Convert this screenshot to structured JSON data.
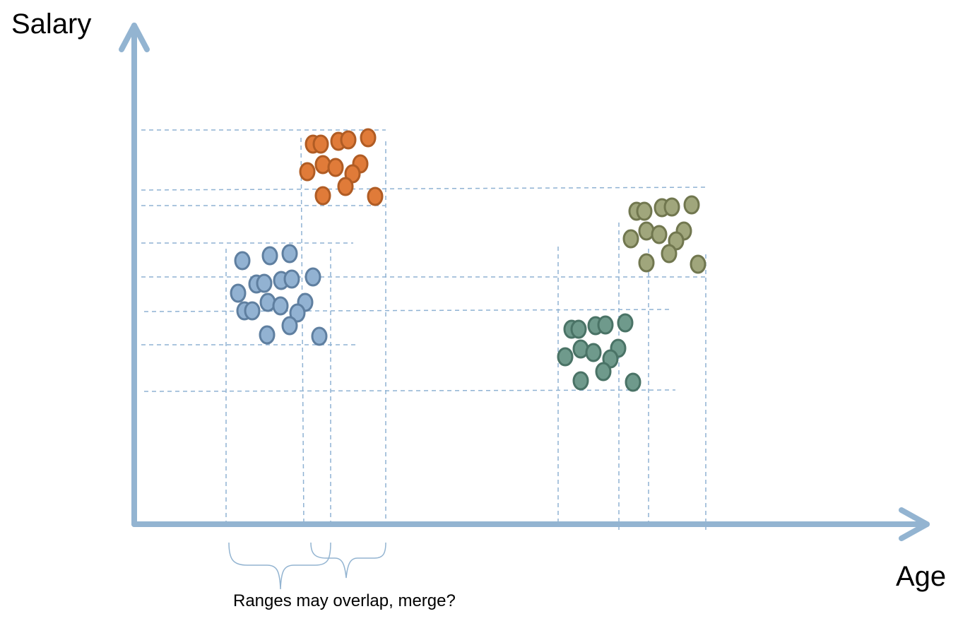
{
  "axes": {
    "y_label": "Salary",
    "x_label": "Age",
    "color": "#93b4d1"
  },
  "caption": "Ranges may overlap, merge?",
  "guide_color": "#8fb2d3",
  "clusters": [
    {
      "name": "blue",
      "fill": "#92b2d2",
      "stroke": "#5f7fa0",
      "points": [
        [
          343,
          369
        ],
        [
          382,
          362
        ],
        [
          410,
          359
        ],
        [
          363,
          402
        ],
        [
          374,
          401
        ],
        [
          398,
          397
        ],
        [
          413,
          395
        ],
        [
          443,
          392
        ],
        [
          337,
          415
        ],
        [
          379,
          428
        ],
        [
          397,
          433
        ],
        [
          432,
          428
        ],
        [
          346,
          440
        ],
        [
          357,
          440
        ],
        [
          421,
          443
        ],
        [
          410,
          461
        ],
        [
          378,
          474
        ],
        [
          452,
          476
        ]
      ]
    },
    {
      "name": "orange",
      "fill": "#e07b39",
      "stroke": "#b05c24",
      "points": [
        [
          443,
          204
        ],
        [
          454,
          204
        ],
        [
          479,
          200
        ],
        [
          493,
          198
        ],
        [
          521,
          195
        ],
        [
          435,
          243
        ],
        [
          457,
          233
        ],
        [
          475,
          237
        ],
        [
          510,
          232
        ],
        [
          499,
          246
        ],
        [
          489,
          264
        ],
        [
          457,
          277
        ],
        [
          531,
          278
        ]
      ]
    },
    {
      "name": "teal",
      "fill": "#6f9a8c",
      "stroke": "#4a7366",
      "points": [
        [
          809,
          466
        ],
        [
          819,
          466
        ],
        [
          843,
          461
        ],
        [
          857,
          460
        ],
        [
          885,
          457
        ],
        [
          800,
          505
        ],
        [
          822,
          494
        ],
        [
          840,
          499
        ],
        [
          875,
          493
        ],
        [
          864,
          508
        ],
        [
          854,
          526
        ],
        [
          822,
          539
        ],
        [
          896,
          541
        ]
      ]
    },
    {
      "name": "olive",
      "fill": "#a0a67c",
      "stroke": "#71774f",
      "points": [
        [
          901,
          299
        ],
        [
          912,
          299
        ],
        [
          937,
          294
        ],
        [
          951,
          293
        ],
        [
          979,
          290
        ],
        [
          893,
          338
        ],
        [
          915,
          327
        ],
        [
          933,
          332
        ],
        [
          968,
          327
        ],
        [
          957,
          341
        ],
        [
          947,
          359
        ],
        [
          915,
          372
        ],
        [
          988,
          374
        ]
      ]
    }
  ]
}
